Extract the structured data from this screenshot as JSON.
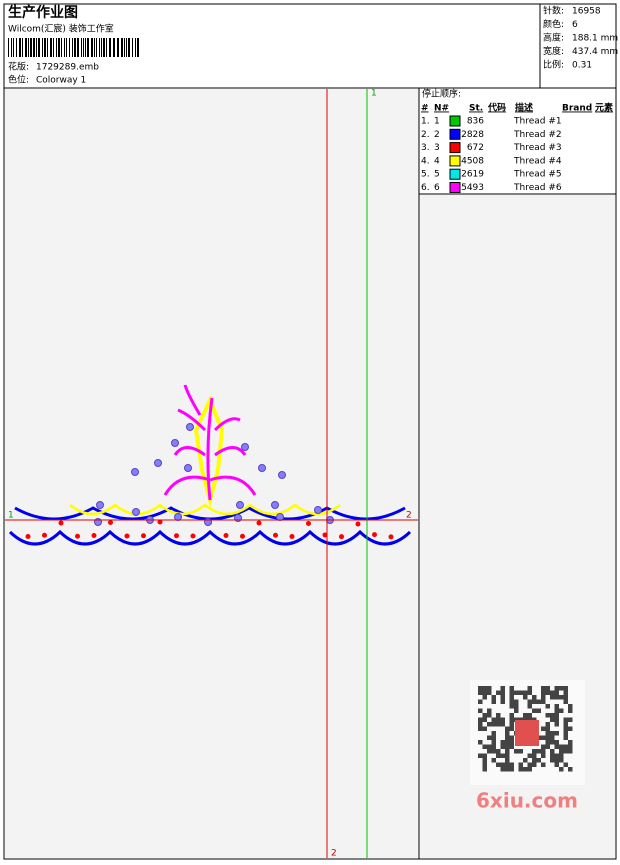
{
  "header": {
    "title": "生产作业图",
    "company": "Wilcom(汇宸) 装饰工作室",
    "design_label": "花版:",
    "design": "1729289.emb",
    "colorway_label": "色位:",
    "colorway": "Colorway 1"
  },
  "stats": [
    {
      "label": "针数:",
      "value": "16958"
    },
    {
      "label": "颜色:",
      "value": "6"
    },
    {
      "label": "高度:",
      "value": "188.1 mm"
    },
    {
      "label": "宽度:",
      "value": "437.4 mm"
    },
    {
      "label": "比例:",
      "value": "0.31"
    }
  ],
  "stop_sequence": {
    "title": "停止顺序:",
    "columns": [
      "#",
      "N#",
      "St.",
      "代码",
      "描述",
      "Brand",
      "元素"
    ],
    "rows": [
      {
        "index": "1.",
        "n": "1",
        "color": "#00c800",
        "stitches": "836",
        "description": "Thread #1"
      },
      {
        "index": "2.",
        "n": "2",
        "color": "#0000ff",
        "stitches": "2828",
        "description": "Thread #2"
      },
      {
        "index": "3.",
        "n": "3",
        "color": "#ff0000",
        "stitches": "672",
        "description": "Thread #3"
      },
      {
        "index": "4.",
        "n": "4",
        "color": "#ffff00",
        "stitches": "4508",
        "description": "Thread #4"
      },
      {
        "index": "5.",
        "n": "5",
        "color": "#00e8e8",
        "stitches": "2619",
        "description": "Thread #5"
      },
      {
        "index": "6.",
        "n": "6",
        "color": "#ff00ff",
        "stitches": "5493",
        "description": "Thread #6"
      }
    ]
  },
  "guides": {
    "vertical_top": "1",
    "vertical_bottom": "2",
    "horizontal_left": "1",
    "horizontal_right": "2"
  },
  "watermark": "6xiu.com"
}
